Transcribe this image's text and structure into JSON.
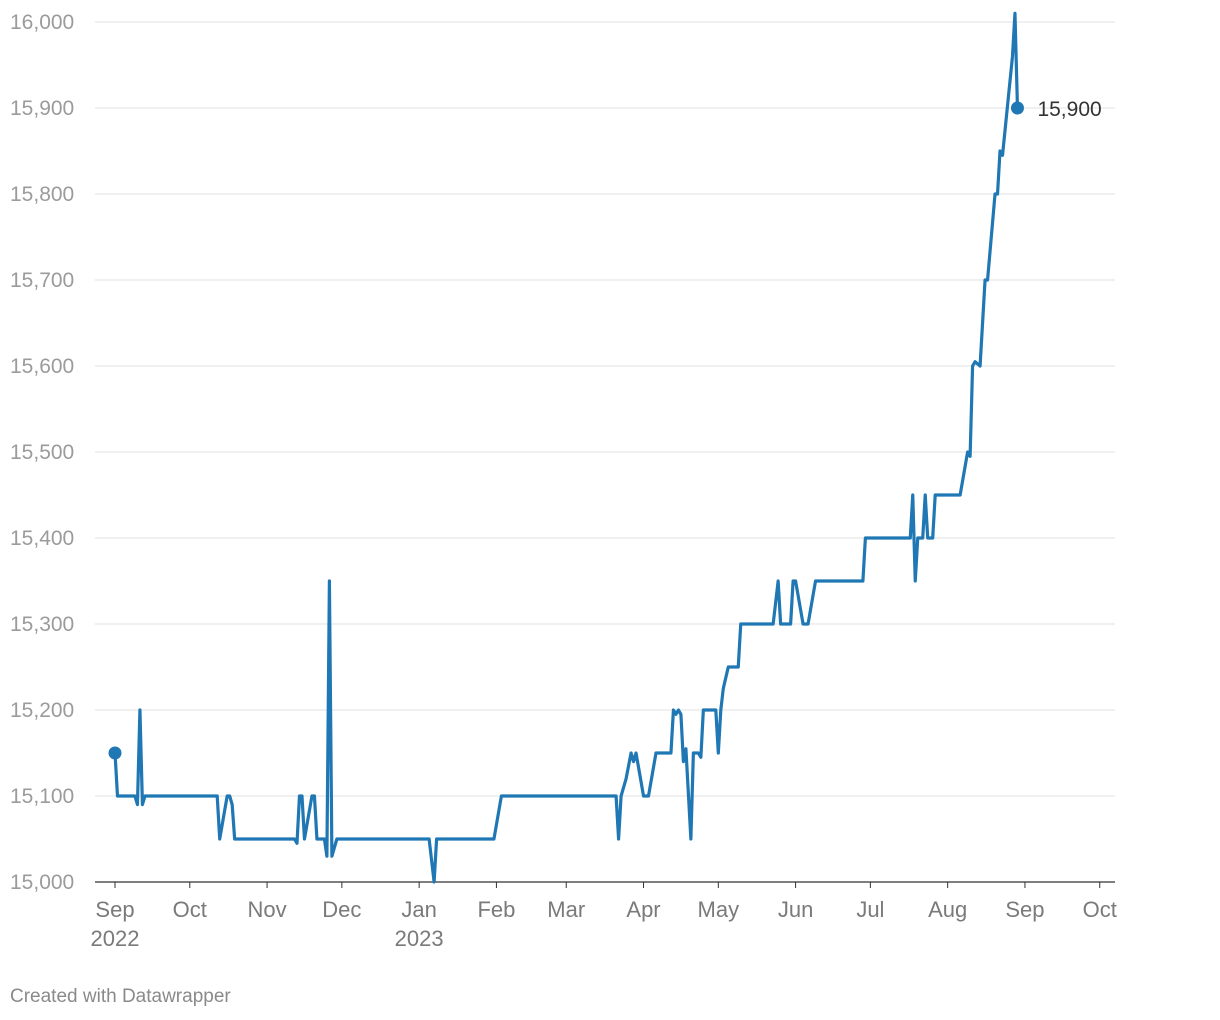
{
  "chart_data": {
    "type": "line",
    "title": "",
    "xlabel": "",
    "ylabel": "",
    "ylim": [
      15000,
      16000
    ],
    "yticks": [
      "15,000",
      "15,100",
      "15,200",
      "15,300",
      "15,400",
      "15,500",
      "15,600",
      "15,700",
      "15,800",
      "15,900",
      "16,000"
    ],
    "xticks": [
      {
        "label": "Sep",
        "sub": "2022"
      },
      {
        "label": "Oct",
        "sub": ""
      },
      {
        "label": "Nov",
        "sub": ""
      },
      {
        "label": "Dec",
        "sub": ""
      },
      {
        "label": "Jan",
        "sub": "2023"
      },
      {
        "label": "Feb",
        "sub": ""
      },
      {
        "label": "Mar",
        "sub": ""
      },
      {
        "label": "Apr",
        "sub": ""
      },
      {
        "label": "May",
        "sub": ""
      },
      {
        "label": "Jun",
        "sub": ""
      },
      {
        "label": "Jul",
        "sub": ""
      },
      {
        "label": "Aug",
        "sub": ""
      },
      {
        "label": "Sep",
        "sub": ""
      },
      {
        "label": "Oct",
        "sub": ""
      }
    ],
    "grid": true,
    "line_color": "#1f77b4",
    "end_label": "15,900",
    "series": [
      {
        "values": [
          [
            "2022-09-01",
            15150
          ],
          [
            "2022-09-02",
            15100
          ],
          [
            "2022-09-04",
            15100
          ],
          [
            "2022-09-09",
            15100
          ],
          [
            "2022-09-10",
            15090
          ],
          [
            "2022-09-11",
            15200
          ],
          [
            "2022-09-12",
            15090
          ],
          [
            "2022-09-13",
            15100
          ],
          [
            "2022-10-12",
            15100
          ],
          [
            "2022-10-13",
            15050
          ],
          [
            "2022-10-16",
            15100
          ],
          [
            "2022-10-17",
            15100
          ],
          [
            "2022-10-18",
            15090
          ],
          [
            "2022-10-19",
            15050
          ],
          [
            "2022-10-20",
            15050
          ],
          [
            "2022-11-12",
            15050
          ],
          [
            "2022-11-13",
            15045
          ],
          [
            "2022-11-14",
            15100
          ],
          [
            "2022-11-15",
            15100
          ],
          [
            "2022-11-16",
            15050
          ],
          [
            "2022-11-19",
            15100
          ],
          [
            "2022-11-20",
            15100
          ],
          [
            "2022-11-21",
            15050
          ],
          [
            "2022-11-24",
            15050
          ],
          [
            "2022-11-25",
            15030
          ],
          [
            "2022-11-26",
            15350
          ],
          [
            "2022-11-27",
            15030
          ],
          [
            "2022-11-29",
            15050
          ],
          [
            "2023-01-05",
            15050
          ],
          [
            "2023-01-07",
            15000
          ],
          [
            "2023-01-08",
            15050
          ],
          [
            "2023-01-31",
            15050
          ],
          [
            "2023-02-03",
            15100
          ],
          [
            "2023-03-21",
            15100
          ],
          [
            "2023-03-22",
            15050
          ],
          [
            "2023-03-23",
            15100
          ],
          [
            "2023-03-25",
            15120
          ],
          [
            "2023-03-27",
            15150
          ],
          [
            "2023-03-28",
            15140
          ],
          [
            "2023-03-29",
            15150
          ],
          [
            "2023-04-01",
            15100
          ],
          [
            "2023-04-03",
            15100
          ],
          [
            "2023-04-06",
            15150
          ],
          [
            "2023-04-12",
            15150
          ],
          [
            "2023-04-13",
            15200
          ],
          [
            "2023-04-14",
            15195
          ],
          [
            "2023-04-15",
            15200
          ],
          [
            "2023-04-16",
            15195
          ],
          [
            "2023-04-17",
            15140
          ],
          [
            "2023-04-18",
            15155
          ],
          [
            "2023-04-20",
            15050
          ],
          [
            "2023-04-21",
            15150
          ],
          [
            "2023-04-22",
            15150
          ],
          [
            "2023-04-23",
            15150
          ],
          [
            "2023-04-24",
            15145
          ],
          [
            "2023-04-25",
            15200
          ],
          [
            "2023-04-30",
            15200
          ],
          [
            "2023-05-01",
            15150
          ],
          [
            "2023-05-02",
            15200
          ],
          [
            "2023-05-03",
            15225
          ],
          [
            "2023-05-05",
            15250
          ],
          [
            "2023-05-09",
            15250
          ],
          [
            "2023-05-10",
            15300
          ],
          [
            "2023-05-23",
            15300
          ],
          [
            "2023-05-25",
            15350
          ],
          [
            "2023-05-26",
            15300
          ],
          [
            "2023-05-30",
            15300
          ],
          [
            "2023-05-31",
            15350
          ],
          [
            "2023-06-01",
            15350
          ],
          [
            "2023-06-04",
            15300
          ],
          [
            "2023-06-06",
            15300
          ],
          [
            "2023-06-09",
            15350
          ],
          [
            "2023-06-28",
            15350
          ],
          [
            "2023-06-29",
            15400
          ],
          [
            "2023-07-17",
            15400
          ],
          [
            "2023-07-18",
            15450
          ],
          [
            "2023-07-19",
            15350
          ],
          [
            "2023-07-20",
            15400
          ],
          [
            "2023-07-22",
            15400
          ],
          [
            "2023-07-23",
            15450
          ],
          [
            "2023-07-24",
            15400
          ],
          [
            "2023-07-26",
            15400
          ],
          [
            "2023-07-27",
            15450
          ],
          [
            "2023-08-06",
            15450
          ],
          [
            "2023-08-09",
            15500
          ],
          [
            "2023-08-10",
            15495
          ],
          [
            "2023-08-11",
            15600
          ],
          [
            "2023-08-12",
            15605
          ],
          [
            "2023-08-14",
            15600
          ],
          [
            "2023-08-16",
            15700
          ],
          [
            "2023-08-17",
            15700
          ],
          [
            "2023-08-20",
            15800
          ],
          [
            "2023-08-21",
            15800
          ],
          [
            "2023-08-22",
            15850
          ],
          [
            "2023-08-23",
            15845
          ],
          [
            "2023-08-27",
            15960
          ],
          [
            "2023-08-28",
            16010
          ],
          [
            "2023-08-29",
            15900
          ]
        ]
      }
    ]
  },
  "footer": {
    "credit": "Created with Datawrapper"
  }
}
